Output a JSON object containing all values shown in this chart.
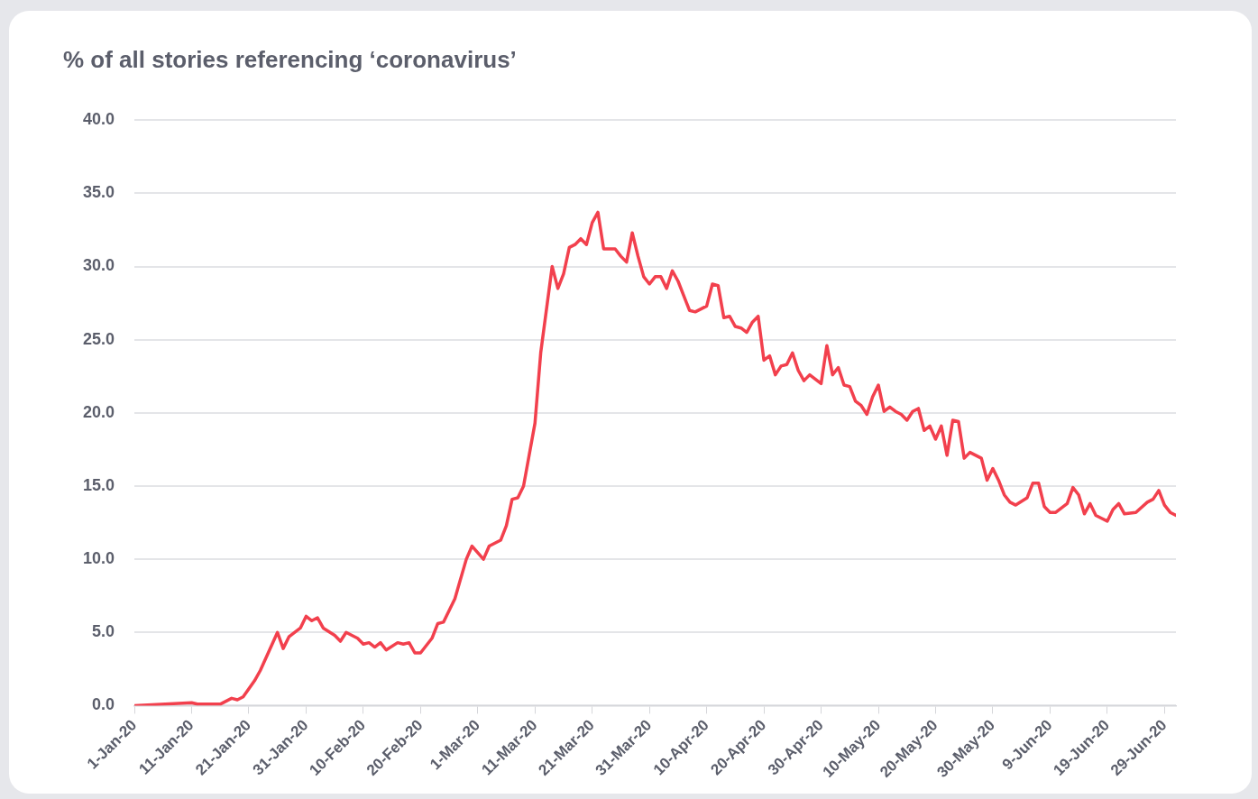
{
  "chart_data": {
    "type": "line",
    "title": "% of all stories referencing ‘coronavirus’",
    "x": [
      "--01-01",
      "--01-11",
      "--01-12",
      "--01-16",
      "--01-18",
      "--01-19",
      "--01-20",
      "--01-22",
      "--01-23",
      "--01-26",
      "--01-27",
      "--01-28",
      "--01-30",
      "--01-31",
      "--02-01",
      "--02-02",
      "--02-03",
      "--02-05",
      "--02-06",
      "--02-07",
      "--02-09",
      "--02-10",
      "--02-11",
      "--02-12",
      "--02-13",
      "--02-14",
      "--02-16",
      "--02-17",
      "--02-18",
      "--02-19",
      "--02-20",
      "--02-22",
      "--02-23",
      "--02-24",
      "--02-26",
      "--02-28",
      "--02-29",
      "--03-02",
      "--03-03",
      "--03-05",
      "--03-06",
      "--03-07",
      "--03-08",
      "--03-09",
      "--03-11",
      "--03-12",
      "--03-14",
      "--03-15",
      "--03-16",
      "--03-17",
      "--03-18",
      "--03-19",
      "--03-20",
      "--03-21",
      "--03-22",
      "--03-23",
      "--03-25",
      "--03-26",
      "--03-27",
      "--03-28",
      "--03-29",
      "--03-30",
      "--03-31",
      "--04-01",
      "--04-02",
      "--04-03",
      "--04-04",
      "--04-05",
      "--04-07",
      "--04-08",
      "--04-10",
      "--04-11",
      "--04-12",
      "--04-13",
      "--04-14",
      "--04-15",
      "--04-16",
      "--04-17",
      "--04-18",
      "--04-19",
      "--04-20",
      "--04-21",
      "--04-22",
      "--04-23",
      "--04-24",
      "--04-25",
      "--04-26",
      "--04-27",
      "--04-28",
      "--04-30",
      "--05-01",
      "--05-02",
      "--05-03",
      "--05-04",
      "--05-05",
      "--05-06",
      "--05-07",
      "--05-08",
      "--05-09",
      "--05-10",
      "--05-11",
      "--05-12",
      "--05-13",
      "--05-14",
      "--05-15",
      "--05-16",
      "--05-17",
      "--05-18",
      "--05-19",
      "--05-20",
      "--05-21",
      "--05-22",
      "--05-23",
      "--05-24",
      "--05-25",
      "--05-26",
      "--05-28",
      "--05-29",
      "--05-30",
      "--05-31",
      "--06-01",
      "--06-02",
      "--06-03",
      "--06-05",
      "--06-06",
      "--06-07",
      "--06-08",
      "--06-09",
      "--06-10",
      "--06-12",
      "--06-13",
      "--06-14",
      "--06-15",
      "--06-16",
      "--06-17",
      "--06-18",
      "--06-19",
      "--06-20",
      "--06-21",
      "--06-22",
      "--06-24",
      "--06-26",
      "--06-27",
      "--06-28",
      "--06-29",
      "--06-30",
      "--07-01"
    ],
    "series": [
      {
        "color": "#f2404d",
        "values": [
          0.0,
          0.2,
          0.1,
          0.1,
          0.5,
          0.4,
          0.6,
          1.7,
          2.4,
          5.0,
          3.9,
          4.7,
          5.3,
          6.1,
          5.8,
          6.0,
          5.3,
          4.8,
          4.4,
          5.0,
          4.6,
          4.2,
          4.3,
          4.0,
          4.3,
          3.8,
          4.3,
          4.2,
          4.3,
          3.6,
          3.6,
          4.6,
          5.6,
          5.7,
          7.3,
          10.0,
          10.9,
          10.0,
          10.9,
          11.3,
          12.3,
          14.1,
          14.2,
          15.0,
          19.3,
          24.1,
          30.0,
          28.5,
          29.5,
          31.3,
          31.5,
          31.9,
          31.5,
          33.0,
          33.7,
          31.2,
          31.2,
          30.7,
          30.3,
          32.3,
          30.7,
          29.3,
          28.8,
          29.3,
          29.3,
          28.5,
          29.7,
          29.0,
          27.0,
          26.9,
          27.3,
          28.8,
          28.7,
          26.5,
          26.6,
          25.9,
          25.8,
          25.5,
          26.2,
          26.6,
          23.6,
          23.9,
          22.6,
          23.2,
          23.3,
          24.1,
          22.9,
          22.2,
          22.6,
          22.0,
          24.6,
          22.6,
          23.1,
          21.9,
          21.8,
          20.8,
          20.5,
          19.9,
          21.1,
          21.9,
          20.1,
          20.4,
          20.1,
          19.9,
          19.5,
          20.1,
          20.3,
          18.8,
          19.1,
          18.2,
          19.1,
          17.1,
          19.5,
          19.4,
          16.9,
          17.3,
          16.9,
          15.4,
          16.2,
          15.4,
          14.4,
          13.9,
          13.7,
          14.2,
          15.2,
          15.2,
          13.6,
          13.2,
          13.2,
          13.8,
          14.9,
          14.4,
          13.1,
          13.8,
          13.0,
          12.8,
          12.6,
          13.4,
          13.8,
          13.1,
          13.2,
          13.9,
          14.1,
          14.7,
          13.7,
          13.2,
          13.0
        ]
      }
    ],
    "xlim": [
      "--01-01",
      "--07-01"
    ],
    "xticks": [
      {
        "value": "--01-01",
        "label": "1-Jan-20"
      },
      {
        "value": "--01-11",
        "label": "11-Jan-20"
      },
      {
        "value": "--01-21",
        "label": "21-Jan-20"
      },
      {
        "value": "--01-31",
        "label": "31-Jan-20"
      },
      {
        "value": "--02-10",
        "label": "10-Feb-20"
      },
      {
        "value": "--02-20",
        "label": "20-Feb-20"
      },
      {
        "value": "--03-01",
        "label": "1-Mar-20"
      },
      {
        "value": "--03-11",
        "label": "11-Mar-20"
      },
      {
        "value": "--03-21",
        "label": "21-Mar-20"
      },
      {
        "value": "--03-31",
        "label": "31-Mar-20"
      },
      {
        "value": "--04-10",
        "label": "10-Apr-20"
      },
      {
        "value": "--04-20",
        "label": "20-Apr-20"
      },
      {
        "value": "--04-30",
        "label": "30-Apr-20"
      },
      {
        "value": "--05-10",
        "label": "10-May-20"
      },
      {
        "value": "--05-20",
        "label": "20-May-20"
      },
      {
        "value": "--05-30",
        "label": "30-May-20"
      },
      {
        "value": "--06-09",
        "label": "9-Jun-20"
      },
      {
        "value": "--06-19",
        "label": "19-Jun-20"
      },
      {
        "value": "--06-29",
        "label": "29-Jun-20"
      }
    ],
    "ylim": [
      0,
      40
    ],
    "yticks": [
      {
        "value": 0,
        "label": "0.0"
      },
      {
        "value": 5,
        "label": "5.0"
      },
      {
        "value": 10,
        "label": "10.0"
      },
      {
        "value": 15,
        "label": "15.0"
      },
      {
        "value": 20,
        "label": "20.0"
      },
      {
        "value": 25,
        "label": "25.0"
      },
      {
        "value": 30,
        "label": "30.0"
      },
      {
        "value": 35,
        "label": "35.0"
      },
      {
        "value": 40,
        "label": "40.0"
      }
    ],
    "grid": "y",
    "legend": false,
    "marker": "none",
    "line_style": "solid"
  }
}
